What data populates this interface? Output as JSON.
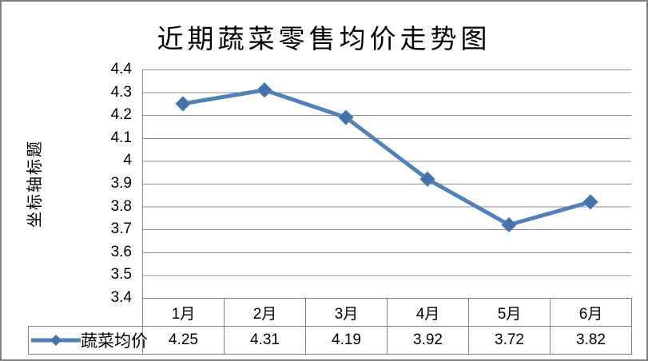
{
  "frame": {
    "background": "#ffffff",
    "border_color": "#808080"
  },
  "chart": {
    "series_color": "#4F81BD",
    "marker_color": "#4472A8",
    "gridline_color": "#8C8C8C",
    "axis_line_color": "#8C8C8C",
    "table_border_color": "#808080",
    "text_color": "#000000"
  },
  "chart_data": {
    "type": "line",
    "title": "近期蔬菜零售均价走势图",
    "xlabel": "",
    "ylabel": "坐标轴标题",
    "categories": [
      "1月",
      "2月",
      "3月",
      "4月",
      "5月",
      "6月"
    ],
    "series": [
      {
        "name": "蔬菜均价",
        "values": [
          4.25,
          4.31,
          4.19,
          3.92,
          3.72,
          3.82
        ]
      }
    ],
    "ylim": [
      3.4,
      4.4
    ],
    "ytick_step": 0.1,
    "yticks": [
      "4.4",
      "4.3",
      "4.2",
      "4.1",
      "4",
      "3.9",
      "3.8",
      "3.7",
      "3.6",
      "3.5",
      "3.4"
    ],
    "grid": true,
    "marker": "diamond",
    "legend_position": "bottom-left-table"
  },
  "data_table": {
    "legend_label": "蔬菜均价",
    "columns": [
      "1月",
      "2月",
      "3月",
      "4月",
      "5月",
      "6月"
    ],
    "values": [
      "4.25",
      "4.31",
      "4.19",
      "3.92",
      "3.72",
      "3.82"
    ]
  }
}
